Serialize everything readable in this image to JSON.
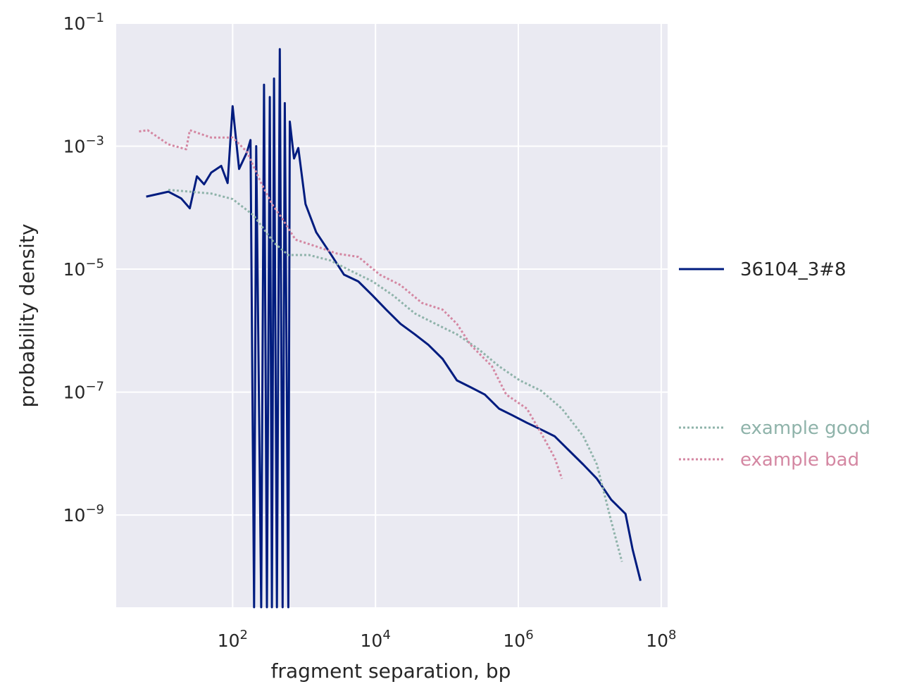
{
  "chart_data": {
    "type": "line",
    "title": "",
    "xlabel": "fragment separation, bp",
    "ylabel": "probability density",
    "xscale": "log",
    "yscale": "log",
    "xlim_log10": [
      0.37,
      8.09
    ],
    "ylim_log10": [
      -10.5,
      -1
    ],
    "grid": true,
    "xticks": [
      {
        "base": "10",
        "exp": "2",
        "v": 2
      },
      {
        "base": "10",
        "exp": "4",
        "v": 4
      },
      {
        "base": "10",
        "exp": "6",
        "v": 6
      },
      {
        "base": "10",
        "exp": "8",
        "v": 8
      }
    ],
    "yticks": [
      {
        "base": "10",
        "exp": "−1",
        "v": -1
      },
      {
        "base": "10",
        "exp": "−3",
        "v": -3
      },
      {
        "base": "10",
        "exp": "−5",
        "v": -5
      },
      {
        "base": "10",
        "exp": "−7",
        "v": -7
      },
      {
        "base": "10",
        "exp": "−9",
        "v": -9
      }
    ],
    "legend_position": "right",
    "series": [
      {
        "name": "36104_3#8",
        "color": "#001c7f",
        "style": "solid",
        "log10_points": [
          [
            0.79,
            -3.82
          ],
          [
            1.1,
            -3.74
          ],
          [
            1.28,
            -3.85
          ],
          [
            1.4,
            -4.01
          ],
          [
            1.5,
            -3.49
          ],
          [
            1.6,
            -3.62
          ],
          [
            1.7,
            -3.43
          ],
          [
            1.84,
            -3.32
          ],
          [
            1.93,
            -3.6
          ],
          [
            2.0,
            -2.35
          ],
          [
            2.09,
            -3.37
          ],
          [
            2.2,
            -3.1
          ],
          [
            2.25,
            -2.9
          ],
          [
            2.3,
            -10.5
          ],
          [
            2.33,
            -3.0
          ],
          [
            2.4,
            -10.5
          ],
          [
            2.44,
            -2.0
          ],
          [
            2.48,
            -10.5
          ],
          [
            2.52,
            -2.2
          ],
          [
            2.55,
            -10.5
          ],
          [
            2.58,
            -1.9
          ],
          [
            2.62,
            -10.5
          ],
          [
            2.66,
            -1.42
          ],
          [
            2.7,
            -10.5
          ],
          [
            2.73,
            -2.3
          ],
          [
            2.78,
            -10.5
          ],
          [
            2.8,
            -2.6
          ],
          [
            2.86,
            -3.2
          ],
          [
            2.92,
            -3.03
          ],
          [
            3.02,
            -3.94
          ],
          [
            3.17,
            -4.4
          ],
          [
            3.37,
            -4.75
          ],
          [
            3.56,
            -5.09
          ],
          [
            3.76,
            -5.2
          ],
          [
            3.96,
            -5.43
          ],
          [
            4.15,
            -5.66
          ],
          [
            4.35,
            -5.89
          ],
          [
            4.55,
            -6.06
          ],
          [
            4.74,
            -6.23
          ],
          [
            4.94,
            -6.46
          ],
          [
            5.14,
            -6.81
          ],
          [
            5.33,
            -6.92
          ],
          [
            5.53,
            -7.04
          ],
          [
            5.73,
            -7.27
          ],
          [
            5.92,
            -7.38
          ],
          [
            6.12,
            -7.5
          ],
          [
            6.32,
            -7.61
          ],
          [
            6.51,
            -7.72
          ],
          [
            6.71,
            -7.95
          ],
          [
            6.91,
            -8.18
          ],
          [
            7.1,
            -8.41
          ],
          [
            7.3,
            -8.75
          ],
          [
            7.5,
            -8.98
          ],
          [
            7.6,
            -9.56
          ],
          [
            7.71,
            -10.07
          ]
        ]
      },
      {
        "name": "example good",
        "color": "#8fb3aa",
        "style": "dotted",
        "log10_points": [
          [
            1.1,
            -3.71
          ],
          [
            1.7,
            -3.77
          ],
          [
            2.0,
            -3.86
          ],
          [
            2.29,
            -4.12
          ],
          [
            2.58,
            -4.57
          ],
          [
            2.78,
            -4.77
          ],
          [
            3.07,
            -4.77
          ],
          [
            3.37,
            -4.86
          ],
          [
            3.66,
            -5.03
          ],
          [
            3.96,
            -5.2
          ],
          [
            4.25,
            -5.43
          ],
          [
            4.55,
            -5.72
          ],
          [
            4.84,
            -5.89
          ],
          [
            5.14,
            -6.06
          ],
          [
            5.43,
            -6.29
          ],
          [
            5.73,
            -6.58
          ],
          [
            6.02,
            -6.81
          ],
          [
            6.32,
            -6.98
          ],
          [
            6.61,
            -7.27
          ],
          [
            6.91,
            -7.72
          ],
          [
            7.1,
            -8.18
          ],
          [
            7.3,
            -9.1
          ],
          [
            7.45,
            -9.76
          ]
        ]
      },
      {
        "name": "example bad",
        "color": "#d487a2",
        "style": "dotted",
        "log10_points": [
          [
            0.69,
            -2.76
          ],
          [
            0.81,
            -2.74
          ],
          [
            1.1,
            -2.97
          ],
          [
            1.35,
            -3.05
          ],
          [
            1.4,
            -2.74
          ],
          [
            1.7,
            -2.86
          ],
          [
            2.0,
            -2.86
          ],
          [
            2.2,
            -3.09
          ],
          [
            2.4,
            -3.6
          ],
          [
            2.55,
            -3.94
          ],
          [
            2.69,
            -4.17
          ],
          [
            2.88,
            -4.52
          ],
          [
            3.17,
            -4.63
          ],
          [
            3.47,
            -4.75
          ],
          [
            3.76,
            -4.8
          ],
          [
            4.06,
            -5.09
          ],
          [
            4.35,
            -5.26
          ],
          [
            4.65,
            -5.55
          ],
          [
            4.94,
            -5.66
          ],
          [
            5.14,
            -5.89
          ],
          [
            5.33,
            -6.23
          ],
          [
            5.63,
            -6.58
          ],
          [
            5.83,
            -7.04
          ],
          [
            6.12,
            -7.27
          ],
          [
            6.32,
            -7.67
          ],
          [
            6.51,
            -8.07
          ],
          [
            6.61,
            -8.41
          ]
        ]
      }
    ]
  }
}
